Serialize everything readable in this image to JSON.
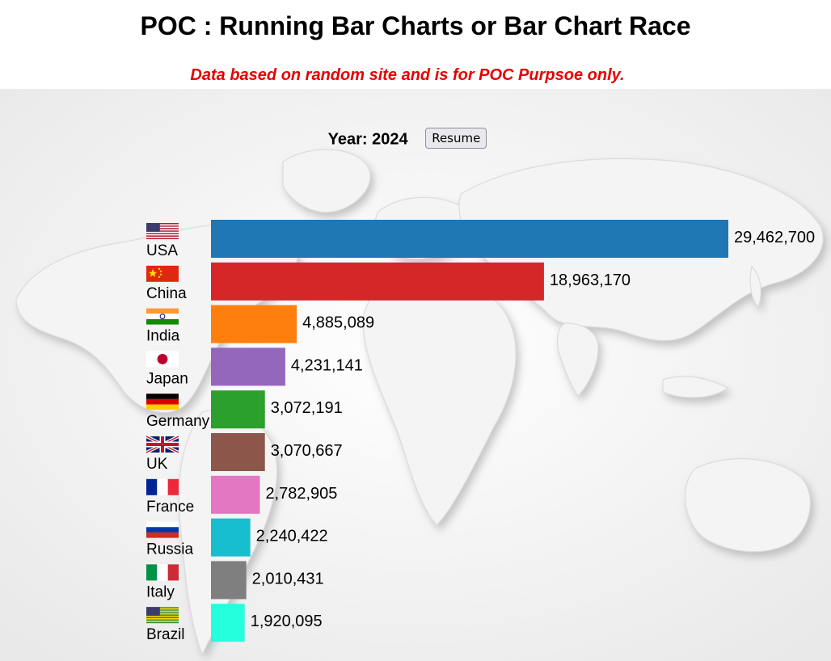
{
  "header": {
    "title": "POC : Running Bar Charts or Bar Chart Race",
    "subtitle": "Data based on random site and is for POC Purpsoe only."
  },
  "controls": {
    "year_label": "Year:",
    "year": "2024",
    "resume_label": "Resume"
  },
  "chart_data": {
    "type": "bar",
    "orientation": "horizontal",
    "categories": [
      "USA",
      "China",
      "India",
      "Japan",
      "Germany",
      "UK",
      "France",
      "Russia",
      "Italy",
      "Brazil"
    ],
    "values": [
      29462700,
      18963170,
      4885089,
      4231141,
      3072191,
      3070667,
      2782905,
      2240422,
      2010431,
      1920095
    ],
    "value_labels": [
      "29,462,700",
      "18,963,170",
      "4,885,089",
      "4,231,141",
      "3,072,191",
      "3,070,667",
      "2,782,905",
      "2,240,422",
      "2,010,431",
      "1,920,095"
    ],
    "colors": [
      "#1f77b4",
      "#d62728",
      "#ff7f0e",
      "#9467bd",
      "#2ca02c",
      "#8c564b",
      "#e377c2",
      "#17becf",
      "#7f7f7f",
      "#26ffde"
    ],
    "flags": [
      "us-flag-icon",
      "china-flag-icon",
      "india-flag-icon",
      "japan-flag-icon",
      "germany-flag-icon",
      "uk-flag-icon",
      "france-flag-icon",
      "russia-flag-icon",
      "italy-flag-icon",
      "brazil-flag-icon"
    ],
    "xlim": [
      0,
      29462700
    ],
    "title": "",
    "xlabel": "",
    "ylabel": ""
  }
}
